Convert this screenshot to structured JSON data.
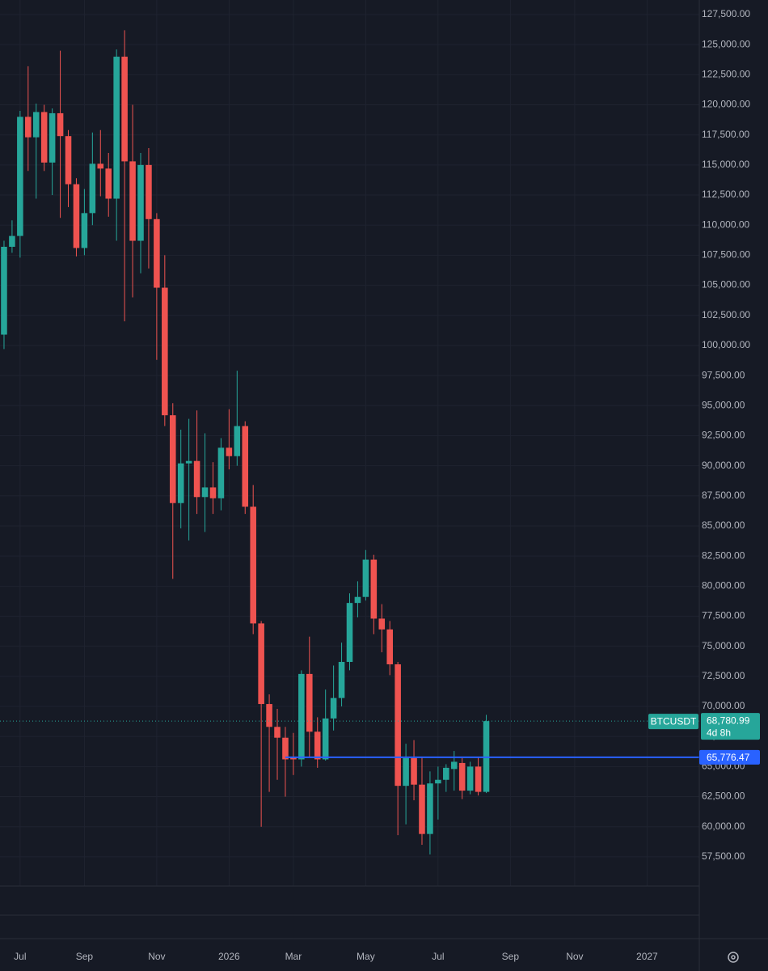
{
  "chart_data": {
    "type": "candlestick",
    "up_color": "#26a69a",
    "down_color": "#ef5350",
    "grid": true,
    "categories": [
      null,
      null,
      "Jul",
      null,
      null,
      null,
      null,
      null,
      null,
      null,
      "Sep",
      null,
      null,
      null,
      null,
      null,
      null,
      null,
      null,
      "Nov",
      null,
      null,
      null,
      null,
      null,
      null,
      null,
      null,
      "2026",
      null,
      null,
      null,
      null,
      null,
      null,
      null,
      "Mar",
      null,
      null,
      null,
      null,
      null,
      null,
      null,
      null,
      "May",
      null,
      null,
      null,
      null,
      null,
      null,
      null,
      null,
      "Jul",
      null,
      null,
      null,
      null,
      null,
      null,
      null,
      null,
      "Sep",
      null,
      null,
      null,
      null,
      null,
      null,
      null,
      "Nov",
      null,
      null,
      null,
      null,
      null,
      null,
      null,
      null,
      "2027",
      null,
      null,
      null,
      null,
      null,
      null
    ],
    "open": [
      100900,
      108200,
      109100,
      119000,
      117300,
      119400,
      115200,
      119300,
      117400,
      113400,
      108100,
      111000,
      115100,
      114700,
      112200,
      124000,
      115300,
      108700,
      115000,
      110500,
      104800,
      94200,
      86900,
      90200,
      90400,
      87400,
      88200,
      87300,
      91500,
      90800,
      93300,
      86600,
      76900,
      70200,
      68300,
      67400,
      65800,
      65600,
      72700,
      67900,
      65600,
      69000,
      70700,
      73700,
      78600,
      79100,
      82200,
      77300,
      76400,
      73500,
      63400,
      65700,
      63500,
      59400,
      63600,
      63900,
      64800,
      65300,
      63000,
      65000,
      62900,
      null,
      null,
      null,
      null,
      null,
      null,
      null,
      null,
      null,
      null,
      null,
      null,
      null,
      null,
      null,
      null,
      null,
      null,
      null,
      null,
      null,
      null,
      null,
      null,
      null,
      null
    ],
    "high": [
      108700,
      110400,
      119500,
      123200,
      120100,
      120000,
      119700,
      124500,
      117900,
      113900,
      113000,
      117700,
      117900,
      116000,
      124600,
      126200,
      120000,
      116000,
      116400,
      111000,
      107500,
      95200,
      93000,
      93900,
      94600,
      92700,
      90300,
      92300,
      94700,
      97900,
      93700,
      88400,
      77100,
      71000,
      69800,
      68300,
      67800,
      73000,
      75800,
      69100,
      71400,
      73400,
      75300,
      79400,
      80400,
      83000,
      82600,
      78500,
      77100,
      73700,
      66900,
      67200,
      65800,
      64600,
      65000,
      65200,
      66300,
      65700,
      65400,
      65800,
      69300,
      null,
      null,
      null,
      null,
      null,
      null,
      null,
      null,
      null,
      null,
      null,
      null,
      null,
      null,
      null,
      null,
      null,
      null,
      null,
      null,
      null,
      null,
      null,
      null,
      null,
      null
    ],
    "low": [
      99700,
      107700,
      107300,
      114500,
      112200,
      114500,
      112500,
      110600,
      111500,
      107400,
      107500,
      110000,
      112400,
      110700,
      108700,
      102000,
      104000,
      106000,
      106400,
      98800,
      93300,
      80600,
      84800,
      83800,
      86000,
      84500,
      86000,
      86300,
      89700,
      90000,
      86000,
      76000,
      60000,
      62900,
      63900,
      62500,
      64300,
      65000,
      65800,
      64900,
      65500,
      68000,
      70000,
      73000,
      77400,
      78800,
      76000,
      74500,
      72600,
      59300,
      60200,
      62200,
      58500,
      57700,
      60600,
      62900,
      63000,
      62300,
      62700,
      62600,
      62800,
      null,
      null,
      null,
      null,
      null,
      null,
      null,
      null,
      null,
      null,
      null,
      null,
      null,
      null,
      null,
      null,
      null,
      null,
      null,
      null,
      null,
      null,
      null,
      null,
      null,
      null
    ],
    "close": [
      108200,
      109100,
      119000,
      117300,
      119400,
      115200,
      119300,
      117400,
      113400,
      108100,
      111000,
      115100,
      114700,
      112200,
      124000,
      115300,
      108700,
      115000,
      110500,
      104800,
      94200,
      86900,
      90200,
      90400,
      87400,
      88200,
      87300,
      91500,
      90800,
      93300,
      86600,
      76900,
      70200,
      68300,
      67400,
      65600,
      65600,
      72700,
      67900,
      65600,
      69000,
      70700,
      73700,
      78600,
      79100,
      82200,
      77300,
      76400,
      73500,
      63400,
      65700,
      63500,
      59400,
      63600,
      63900,
      64900,
      65400,
      63000,
      65000,
      62900,
      68780.99,
      null,
      null,
      null,
      null,
      null,
      null,
      null,
      null,
      null,
      null,
      null,
      null,
      null,
      null,
      null,
      null,
      null,
      null,
      null,
      null,
      null,
      null,
      null,
      null,
      null,
      null
    ],
    "ylim": [
      55073,
      128710
    ],
    "yticks": [
      {
        "value": 57500,
        "label": "57,500.00"
      },
      {
        "value": 60000,
        "label": "60,000.00"
      },
      {
        "value": 62500,
        "label": "62,500.00"
      },
      {
        "value": 65000,
        "label": "65,000.00"
      },
      {
        "value": 67500,
        "label": "67,500.00"
      },
      {
        "value": 70000,
        "label": "70,000.00"
      },
      {
        "value": 72500,
        "label": "72,500.00"
      },
      {
        "value": 75000,
        "label": "75,000.00"
      },
      {
        "value": 77500,
        "label": "77,500.00"
      },
      {
        "value": 80000,
        "label": "80,000.00"
      },
      {
        "value": 82500,
        "label": "82,500.00"
      },
      {
        "value": 85000,
        "label": "85,000.00"
      },
      {
        "value": 87500,
        "label": "87,500.00"
      },
      {
        "value": 90000,
        "label": "90,000.00"
      },
      {
        "value": 92500,
        "label": "92,500.00"
      },
      {
        "value": 95000,
        "label": "95,000.00"
      },
      {
        "value": 97500,
        "label": "97,500.00"
      },
      {
        "value": 100000,
        "label": "100,000.00"
      },
      {
        "value": 102500,
        "label": "102,500.00"
      },
      {
        "value": 105000,
        "label": "105,000.00"
      },
      {
        "value": 107500,
        "label": "107,500.00"
      },
      {
        "value": 110000,
        "label": "110,000.00"
      },
      {
        "value": 112500,
        "label": "112,500.00"
      },
      {
        "value": 115000,
        "label": "115,000.00"
      },
      {
        "value": 117500,
        "label": "117,500.00"
      },
      {
        "value": 120000,
        "label": "120,000.00"
      },
      {
        "value": 122500,
        "label": "122,500.00"
      },
      {
        "value": 125000,
        "label": "125,000.00"
      },
      {
        "value": 127500,
        "label": "127,500.00"
      }
    ],
    "last_price": {
      "symbol": "BTCUSDT",
      "value": 68780.99,
      "label": "68,780.99",
      "countdown": "4d 8h",
      "color": "#26a69a"
    },
    "horizontal_line": {
      "value": 65776.47,
      "label": "65,776.47",
      "color": "#2962ff"
    }
  }
}
